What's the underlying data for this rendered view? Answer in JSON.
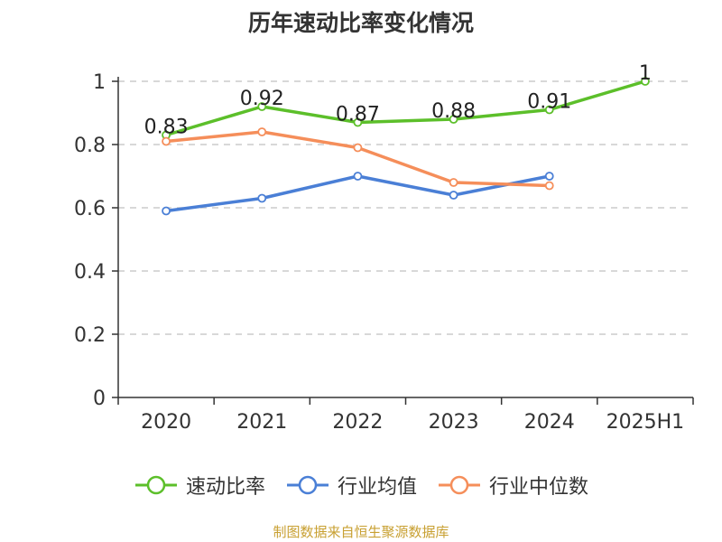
{
  "chart_data": {
    "type": "line",
    "title": "历年速动比率变化情况",
    "xlabel": "",
    "ylabel": "",
    "categories": [
      "2020",
      "2021",
      "2022",
      "2023",
      "2024",
      "2025H1"
    ],
    "ylim": [
      0,
      1
    ],
    "yticks": [
      "0",
      "0.2",
      "0.4",
      "0.6",
      "0.8",
      "1"
    ],
    "ytick_values": [
      0,
      0.2,
      0.4,
      0.6,
      0.8,
      1
    ],
    "grid": true,
    "legend_position": "bottom",
    "series": [
      {
        "name": "速动比率",
        "color": "#5cbf2a",
        "values": [
          0.83,
          0.92,
          0.87,
          0.88,
          0.91,
          1.0
        ],
        "labels": [
          "0.83",
          "0.92",
          "0.87",
          "0.88",
          "0.91",
          "1"
        ]
      },
      {
        "name": "行业均值",
        "color": "#4a7fd6",
        "values": [
          0.59,
          0.63,
          0.7,
          0.64,
          0.7,
          null
        ]
      },
      {
        "name": "行业中位数",
        "color": "#f58e5a",
        "values": [
          0.81,
          0.84,
          0.79,
          0.68,
          0.67,
          null
        ]
      }
    ]
  },
  "footer": {
    "source": "制图数据来自恒生聚源数据库"
  }
}
